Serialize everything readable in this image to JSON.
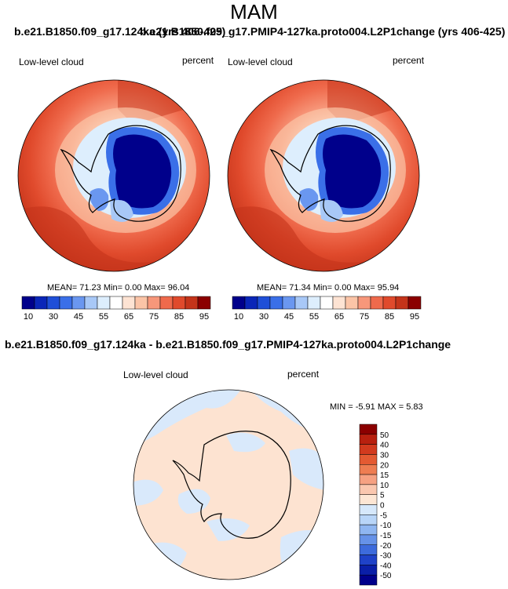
{
  "page": {
    "season": "MAM",
    "top_title_left": "b.e21.B1850.f09_g17.124ka (yrs 406-425)",
    "top_title_right": "b.e21.B1850.f09_g17.PMIP4-127ka.proto004.L2P1change (yrs 406-425)"
  },
  "panels": [
    {
      "variable_label": "Low-level cloud",
      "units_label": "percent",
      "stats": "MEAN=  71.23  Min=   0.00  Max=  96.04"
    },
    {
      "variable_label": "Low-level cloud",
      "units_label": "percent",
      "stats": "MEAN=  71.34  Min=   0.00  Max=  95.94"
    }
  ],
  "top_colorbar": {
    "colors": [
      "#00008b",
      "#0a26b8",
      "#1f4fd8",
      "#3a6fe8",
      "#6a97f0",
      "#a8c8f7",
      "#ddeefd",
      "#ffffff",
      "#fde3d3",
      "#fbc4a7",
      "#f7977a",
      "#ef6a4c",
      "#e04a2c",
      "#c4341a",
      "#8b0000"
    ],
    "tick_labels": [
      "10",
      "30",
      "45",
      "55",
      "65",
      "75",
      "85",
      "95"
    ]
  },
  "difference": {
    "title": "b.e21.B1850.f09_g17.124ka - b.e21.B1850.f09_g17.PMIP4-127ka.proto004.L2P1change",
    "variable_label": "Low-level cloud",
    "units_label": "percent",
    "minmax": "MIN =  -5.91 MAX =   5.83",
    "colorbar": {
      "colors": [
        "#8b0000",
        "#b8200f",
        "#d23a1e",
        "#e45a32",
        "#ee7d52",
        "#f6a182",
        "#fac7af",
        "#fde6d4",
        "#d6e8fb",
        "#b8d5f8",
        "#8fb6f1",
        "#6692e8",
        "#3d6bdc",
        "#1f42c8",
        "#0a1fa8",
        "#00008b"
      ],
      "tick_labels": [
        "50",
        "40",
        "30",
        "20",
        "15",
        "10",
        "5",
        "0",
        "-5",
        "-10",
        "-15",
        "-20",
        "-30",
        "-40",
        "-50"
      ]
    },
    "fill_positive": "#fde3d1",
    "fill_negative": "#d9e9fb"
  }
}
